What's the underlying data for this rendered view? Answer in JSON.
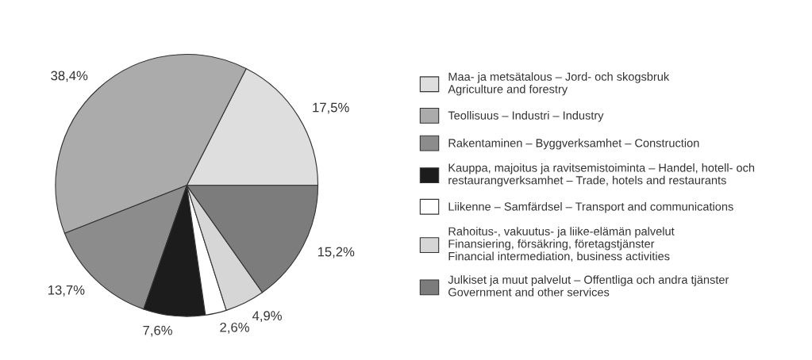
{
  "chart_data": {
    "type": "pie",
    "categories": [
      "Maa- ja metsätalous – Jord- och skogsbruk\nAgriculture and forestry",
      "Teollisuus – Industri – Industry",
      "Rakentaminen – Byggverksamhet – Construction",
      "Kauppa, majoitus ja ravitsemistoiminta – Handel, hotell- och\nrestaurangverksamhet – Trade, hotels and restaurants",
      "Liikenne – Samfärdsel – Transport and communications",
      "Rahoitus-, vakuutus- ja liike-elämän palvelut\nFinansiering, försäkring, företagstjänster\nFinancial intermediation, business activities",
      "Julkiset ja muut palvelut – Offentliga och andra tjänster\nGovernment and other services"
    ],
    "values": [
      17.5,
      38.4,
      13.7,
      7.6,
      2.6,
      4.9,
      15.2
    ],
    "value_labels": [
      "17,5%",
      "38,4%",
      "13,7%",
      "7,6%",
      "2,6%",
      "4,9%",
      "15,2%"
    ],
    "colors": [
      "#dedede",
      "#ababab",
      "#8c8c8c",
      "#1c1c1c",
      "#ffffff",
      "#d6d6d6",
      "#7c7c7c"
    ],
    "legend": "right"
  }
}
